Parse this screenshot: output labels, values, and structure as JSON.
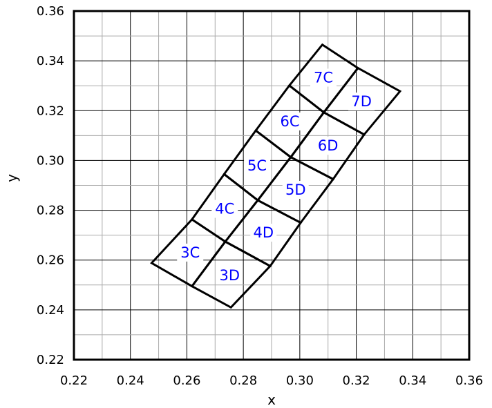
{
  "chart_data": {
    "type": "diagram",
    "title": "",
    "xlabel": "x",
    "ylabel": "y",
    "xlim": [
      0.22,
      0.36
    ],
    "ylim": [
      0.22,
      0.36
    ],
    "x_ticks": [
      "0.22",
      "0.24",
      "0.26",
      "0.28",
      "0.30",
      "0.32",
      "0.34",
      "0.36"
    ],
    "y_ticks": [
      "0.22",
      "0.24",
      "0.26",
      "0.28",
      "0.30",
      "0.32",
      "0.34",
      "0.36"
    ],
    "grid": true,
    "minor_step": 0.01,
    "colors": {
      "label": "#0000ff",
      "outline": "#000000",
      "grid": "#aaaaaa"
    },
    "zones": [
      {
        "label": "3C",
        "corners": [
          [
            0.2475,
            0.2588
          ],
          [
            0.2618,
            0.2763
          ],
          [
            0.2736,
            0.2674
          ],
          [
            0.2618,
            0.2495
          ]
        ]
      },
      {
        "label": "3D",
        "corners": [
          [
            0.2618,
            0.2495
          ],
          [
            0.2736,
            0.2674
          ],
          [
            0.2895,
            0.2576
          ],
          [
            0.2756,
            0.241
          ]
        ]
      },
      {
        "label": "4C",
        "corners": [
          [
            0.2618,
            0.2763
          ],
          [
            0.2732,
            0.2945
          ],
          [
            0.2851,
            0.284
          ],
          [
            0.2736,
            0.2674
          ]
        ]
      },
      {
        "label": "4D",
        "corners": [
          [
            0.2736,
            0.2674
          ],
          [
            0.2851,
            0.284
          ],
          [
            0.3003,
            0.275
          ],
          [
            0.2895,
            0.2576
          ]
        ]
      },
      {
        "label": "5C",
        "corners": [
          [
            0.2732,
            0.2945
          ],
          [
            0.2844,
            0.312
          ],
          [
            0.2968,
            0.3013
          ],
          [
            0.2851,
            0.284
          ]
        ]
      },
      {
        "label": "5D",
        "corners": [
          [
            0.2851,
            0.284
          ],
          [
            0.2968,
            0.3013
          ],
          [
            0.3118,
            0.2925
          ],
          [
            0.3003,
            0.275
          ]
        ]
      },
      {
        "label": "6C",
        "corners": [
          [
            0.2844,
            0.312
          ],
          [
            0.2963,
            0.3301
          ],
          [
            0.3085,
            0.3193
          ],
          [
            0.2968,
            0.3013
          ]
        ]
      },
      {
        "label": "6D",
        "corners": [
          [
            0.2968,
            0.3013
          ],
          [
            0.3085,
            0.3193
          ],
          [
            0.3228,
            0.3104
          ],
          [
            0.3118,
            0.2925
          ]
        ]
      },
      {
        "label": "7C",
        "corners": [
          [
            0.2963,
            0.3301
          ],
          [
            0.308,
            0.3465
          ],
          [
            0.3206,
            0.3371
          ],
          [
            0.3085,
            0.3193
          ]
        ]
      },
      {
        "label": "7D",
        "corners": [
          [
            0.3085,
            0.3193
          ],
          [
            0.3206,
            0.3371
          ],
          [
            0.3355,
            0.3278
          ],
          [
            0.3228,
            0.3104
          ]
        ]
      }
    ]
  }
}
